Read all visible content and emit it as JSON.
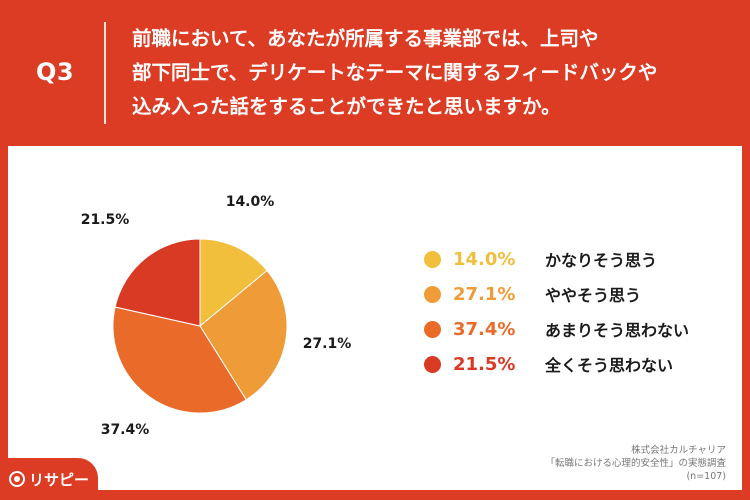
{
  "header": {
    "q_label": "Q3",
    "question_lines": [
      "前職において、あなたが所属する事業部では、上司や",
      "部下同士で、デリケートなテーマに関するフィードバックや",
      "込み入った話をすることができたと思いますか。"
    ]
  },
  "colors": {
    "background": "#dc3b24",
    "panel": "#ffffff",
    "slice_1": "#f1bf3c",
    "slice_2": "#ef9c38",
    "slice_3": "#ea6a2a",
    "slice_4": "#d83a24"
  },
  "chart_data": {
    "type": "pie",
    "categories": [
      "かなりそう思う",
      "ややそう思う",
      "あまりそう思わない",
      "全くそう思わない"
    ],
    "values": [
      14.0,
      27.1,
      37.4,
      21.5
    ],
    "labels": [
      "14.0%",
      "27.1%",
      "37.4%",
      "21.5%"
    ],
    "legend_position": "right"
  },
  "legend": [
    {
      "pct": "14.0%",
      "label": "かなりそう思う"
    },
    {
      "pct": "27.1%",
      "label": "ややそう思う"
    },
    {
      "pct": "37.4%",
      "label": "あまりそう思わない"
    },
    {
      "pct": "21.5%",
      "label": "全くそう思わない"
    }
  ],
  "source": {
    "company": "株式会社カルチャリア",
    "survey": "「転職における心理的安全性」の実態調査",
    "n": "(n=107)"
  },
  "logo": {
    "text": "リサピー",
    "icon": "location-pin-icon"
  }
}
